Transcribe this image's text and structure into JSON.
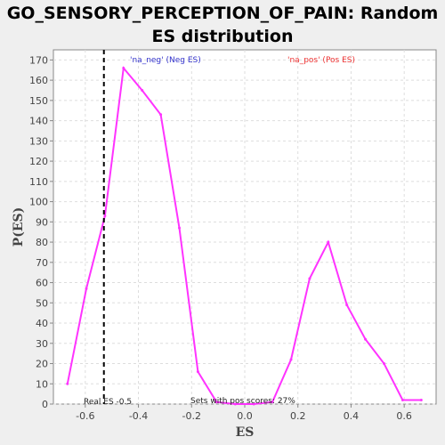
{
  "chart_data": {
    "type": "line",
    "title": "GO_SENSORY_PERCEPTION_OF_PAIN: Random ES distribution",
    "xlabel": "ES",
    "ylabel": "P(ES)",
    "xlim": [
      -0.72,
      0.72
    ],
    "ylim": [
      0,
      175
    ],
    "x_ticks": [
      -0.6,
      -0.4,
      -0.2,
      0.0,
      0.2,
      0.4,
      0.6
    ],
    "x_tick_labels": [
      "-0.6",
      "-0.4",
      "-0.2",
      "0.0",
      "0.2",
      "0.4",
      "0.6"
    ],
    "y_ticks": [
      0,
      10,
      20,
      30,
      40,
      50,
      60,
      70,
      80,
      90,
      100,
      110,
      120,
      130,
      140,
      150,
      160,
      170
    ],
    "y_tick_labels": [
      "0",
      "10",
      "20",
      "30",
      "40",
      "50",
      "60",
      "70",
      "80",
      "90",
      "100",
      "110",
      "120",
      "130",
      "140",
      "150",
      "160",
      "170"
    ],
    "grid": true,
    "series": [
      {
        "color": "#ff33ff",
        "x": [
          -0.667,
          -0.596,
          -0.526,
          -0.456,
          -0.386,
          -0.316,
          -0.246,
          -0.176,
          -0.106,
          -0.036,
          0.034,
          0.104,
          0.174,
          0.244,
          0.314,
          0.384,
          0.454,
          0.524,
          0.594,
          0.664
        ],
        "y": [
          10,
          57,
          93,
          166,
          155,
          143,
          87,
          16,
          1,
          0,
          0,
          1,
          22,
          62,
          80,
          49,
          32,
          20,
          2,
          2
        ]
      }
    ],
    "real_es": -0.53,
    "legend": [
      {
        "text": "'na_neg' (Neg ES)",
        "color": "#3333cc"
      },
      {
        "text": "'na_pos' (Pos ES)",
        "color": "#ee3333"
      }
    ],
    "annotations": {
      "real_es_text": "Real ES -0.5",
      "pos_scores_text": "Sets with pos scores: 27%"
    }
  }
}
